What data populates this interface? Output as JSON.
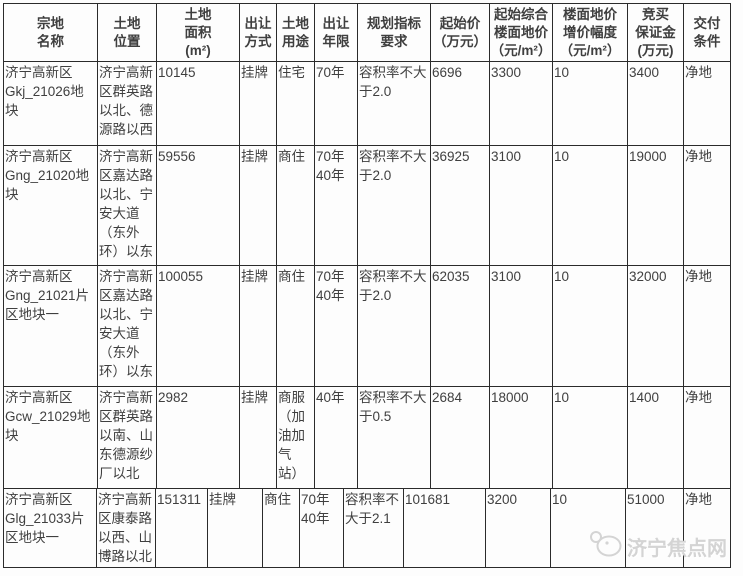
{
  "colors": {
    "background": "#fdfdfd",
    "border": "#2b2b2b",
    "text": "#3f3f3f",
    "watermark": "#d4d4d4"
  },
  "table": {
    "headers": [
      "宗地\n名称",
      "土地\n位置",
      "土地\n面积\n(m²)",
      "出让\n方式",
      "土地\n用途",
      "出让\n年限",
      "规划指标\n要求",
      "起始价\n（万元）",
      "起始综合\n楼面地价\n（元/m²）",
      "楼面地价\n增价幅度\n（元/m²）",
      "竞买\n保证金\n(万元)",
      "交付\n条件"
    ],
    "rows": [
      [
        "济宁高新区\nGkj_21026地\n块",
        "济宁高新\n区群英路\n以北、德\n源路以西",
        "10145",
        "挂牌",
        "住宅",
        "70年",
        "容积率不大\n于2.0",
        "6696",
        "3300",
        "10",
        "3400",
        "净地"
      ],
      [
        "济宁高新区\nGng_21020地\n块",
        "济宁高新\n区嘉达路\n以北、宁\n安大道\n（东外\n环）以东",
        "59556",
        "挂牌",
        "商住",
        "70年\n40年",
        "容积率不大\n于2.0",
        "36925",
        "3100",
        "10",
        "19000",
        "净地"
      ],
      [
        "济宁高新区\nGng_21021片\n区地块一",
        "济宁高新\n区嘉达路\n以北、宁\n安大道\n（东外\n环）以东",
        "100055",
        "挂牌",
        "商住",
        "70年\n40年",
        "容积率不大\n于2.0",
        "62035",
        "3100",
        "10",
        "32000",
        "净地"
      ],
      [
        "济宁高新区\nGcw_21029地\n块",
        "济宁高新\n区群英路\n以南、山\n东德源纱\n厂以北",
        "2982",
        "挂牌",
        "商服\n（加\n油加\n气\n站）",
        "40年",
        "容积率不大\n于0.5",
        "2684",
        "18000",
        "10",
        "1400",
        "净地"
      ],
      [
        "济宁高新区\nGlg_21033片\n区地块一",
        "济宁高新\n区康泰路\n以西、山\n博路以北",
        "151311",
        "挂牌",
        "商住",
        "70年\n40年",
        "容积率不\n大于2.1",
        "101681",
        "3200",
        "10",
        "51000",
        "净地"
      ]
    ]
  },
  "watermark": {
    "text": "济宁焦点网"
  }
}
